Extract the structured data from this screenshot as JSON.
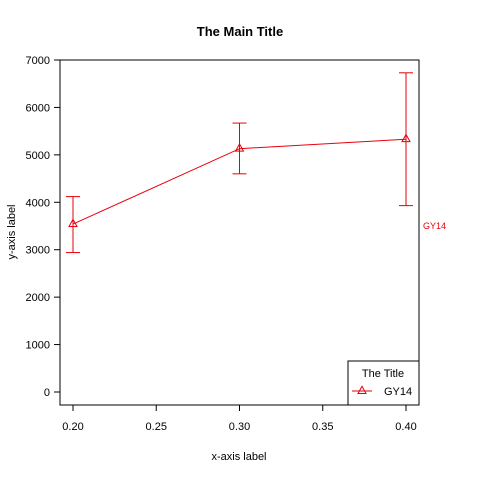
{
  "chart_data": {
    "type": "line",
    "title": "The Main Title",
    "xlabel": "x-axis label",
    "ylabel": "y-axis label",
    "xlim": [
      0.2,
      0.4
    ],
    "ylim": [
      0,
      7000
    ],
    "x_ticks": [
      0.2,
      0.25,
      0.3,
      0.35,
      0.4
    ],
    "x_tick_labels": [
      "0.20",
      "0.25",
      "0.30",
      "0.35",
      "0.40"
    ],
    "y_ticks": [
      0,
      1000,
      2000,
      3000,
      4000,
      5000,
      6000,
      7000
    ],
    "y_tick_labels": [
      "0",
      "1000",
      "2000",
      "3000",
      "4000",
      "5000",
      "6000",
      "7000"
    ],
    "grid": false,
    "legend": {
      "title": "The Title",
      "placement": "bottom-right",
      "entries": [
        "GY14"
      ]
    },
    "series": [
      {
        "name": "GY14",
        "color": "#e8000b",
        "marker": "triangle",
        "x": [
          0.2,
          0.3,
          0.4
        ],
        "y": [
          3540,
          5130,
          5330
        ],
        "y_lower": [
          2940,
          4600,
          3930
        ],
        "y_upper": [
          4120,
          5670,
          6730
        ],
        "end_label": "GY14"
      }
    ]
  }
}
